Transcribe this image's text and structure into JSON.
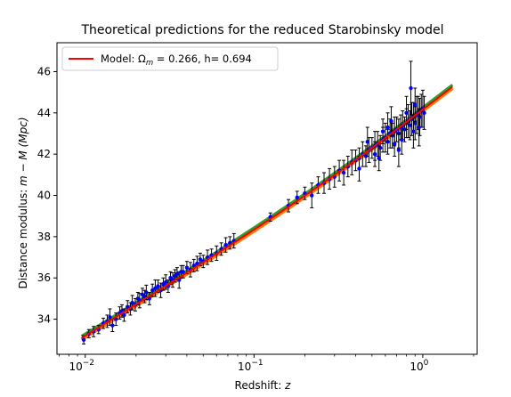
{
  "chart_data": {
    "type": "scatter",
    "title": "Theoretical predictions for the reduced Starobinsky model",
    "xlabel": "Redshift: z",
    "ylabel": "Distance modulus: m − M (Mpc)",
    "xscale": "log",
    "xlim": [
      0.0068,
      2.1
    ],
    "ylim": [
      32.3,
      47.4
    ],
    "x_ticks": [
      {
        "value": 0.01,
        "label": "10",
        "exp": "−2"
      },
      {
        "value": 0.1,
        "label": "10",
        "exp": "−1"
      },
      {
        "value": 1,
        "label": "10",
        "exp": "0"
      }
    ],
    "y_ticks": [
      34,
      36,
      38,
      40,
      42,
      44,
      46
    ],
    "legend": {
      "position": "upper-left",
      "entry": "Model: Ωm = 0.266, h= 0.694",
      "entry_parts": {
        "prefix": "Model: Ω",
        "sub": "m",
        "suffix": " = 0.266, h= 0.694"
      },
      "color": "#ff0000"
    },
    "model": {
      "name": "Model: Ωm = 0.266, h= 0.694",
      "color": "#ff0000",
      "band_colors": [
        "#2ca02c",
        "#ff7f0e"
      ],
      "Omega_m": 0.266,
      "h": 0.694,
      "z_range": [
        0.0095,
        1.5
      ]
    },
    "series": [
      {
        "marker_color": "#0000ff",
        "errorbar_color": "#000000",
        "values": [
          [
            0.0098,
            33.0,
            0.2
          ],
          [
            0.0105,
            33.3,
            0.2
          ],
          [
            0.0112,
            33.4,
            0.25
          ],
          [
            0.012,
            33.5,
            0.2
          ],
          [
            0.0128,
            33.8,
            0.25
          ],
          [
            0.0135,
            33.9,
            0.3
          ],
          [
            0.014,
            34.1,
            0.4
          ],
          [
            0.0145,
            33.7,
            0.3
          ],
          [
            0.0152,
            34.0,
            0.3
          ],
          [
            0.016,
            34.3,
            0.3
          ],
          [
            0.0165,
            34.4,
            0.3
          ],
          [
            0.017,
            34.2,
            0.3
          ],
          [
            0.0178,
            34.6,
            0.3
          ],
          [
            0.0185,
            34.5,
            0.3
          ],
          [
            0.019,
            34.8,
            0.35
          ],
          [
            0.0198,
            34.7,
            0.3
          ],
          [
            0.0205,
            35.0,
            0.3
          ],
          [
            0.021,
            34.9,
            0.35
          ],
          [
            0.0218,
            35.2,
            0.3
          ],
          [
            0.0225,
            35.1,
            0.3
          ],
          [
            0.023,
            35.3,
            0.35
          ],
          [
            0.024,
            35.0,
            0.3
          ],
          [
            0.025,
            35.4,
            0.3
          ],
          [
            0.026,
            35.5,
            0.4
          ],
          [
            0.027,
            35.6,
            0.3
          ],
          [
            0.028,
            35.4,
            0.35
          ],
          [
            0.029,
            35.7,
            0.3
          ],
          [
            0.03,
            35.8,
            0.35
          ],
          [
            0.031,
            35.6,
            0.3
          ],
          [
            0.032,
            36.0,
            0.3
          ],
          [
            0.033,
            35.9,
            0.35
          ],
          [
            0.034,
            36.1,
            0.3
          ],
          [
            0.035,
            36.2,
            0.3
          ],
          [
            0.036,
            35.9,
            0.4
          ],
          [
            0.037,
            36.3,
            0.3
          ],
          [
            0.038,
            36.3,
            0.3
          ],
          [
            0.04,
            36.5,
            0.3
          ],
          [
            0.042,
            36.4,
            0.35
          ],
          [
            0.044,
            36.6,
            0.3
          ],
          [
            0.046,
            36.7,
            0.35
          ],
          [
            0.048,
            36.9,
            0.3
          ],
          [
            0.05,
            36.8,
            0.3
          ],
          [
            0.053,
            37.0,
            0.35
          ],
          [
            0.056,
            37.1,
            0.3
          ],
          [
            0.06,
            37.2,
            0.35
          ],
          [
            0.064,
            37.4,
            0.3
          ],
          [
            0.068,
            37.6,
            0.35
          ],
          [
            0.072,
            37.7,
            0.3
          ],
          [
            0.076,
            37.8,
            0.35
          ],
          [
            0.125,
            38.95,
            0.2
          ],
          [
            0.16,
            39.5,
            0.3
          ],
          [
            0.18,
            39.9,
            0.3
          ],
          [
            0.2,
            40.1,
            0.3
          ],
          [
            0.22,
            40.0,
            0.6
          ],
          [
            0.24,
            40.5,
            0.4
          ],
          [
            0.26,
            40.6,
            0.5
          ],
          [
            0.28,
            40.8,
            0.5
          ],
          [
            0.3,
            40.9,
            0.5
          ],
          [
            0.32,
            41.2,
            0.5
          ],
          [
            0.34,
            41.1,
            0.6
          ],
          [
            0.36,
            41.4,
            0.5
          ],
          [
            0.38,
            41.6,
            0.6
          ],
          [
            0.4,
            41.7,
            0.5
          ],
          [
            0.42,
            41.8,
            0.5
          ],
          [
            0.44,
            42.0,
            0.6
          ],
          [
            0.46,
            41.9,
            0.5
          ],
          [
            0.48,
            42.2,
            0.6
          ],
          [
            0.5,
            42.3,
            0.5
          ],
          [
            0.52,
            42.4,
            0.7
          ],
          [
            0.54,
            42.5,
            0.6
          ],
          [
            0.56,
            42.3,
            0.6
          ],
          [
            0.58,
            42.7,
            0.6
          ],
          [
            0.6,
            42.8,
            0.7
          ],
          [
            0.62,
            42.6,
            0.6
          ],
          [
            0.64,
            43.0,
            0.7
          ],
          [
            0.66,
            42.9,
            0.6
          ],
          [
            0.68,
            43.1,
            0.7
          ],
          [
            0.7,
            43.2,
            0.6
          ],
          [
            0.72,
            43.0,
            0.7
          ],
          [
            0.74,
            43.3,
            0.6
          ],
          [
            0.76,
            43.4,
            0.7
          ],
          [
            0.78,
            43.2,
            0.6
          ],
          [
            0.8,
            43.5,
            0.7
          ],
          [
            0.82,
            43.6,
            0.8
          ],
          [
            0.84,
            43.4,
            0.7
          ],
          [
            0.86,
            43.7,
            0.8
          ],
          [
            0.88,
            43.8,
            0.7
          ],
          [
            0.9,
            43.5,
            0.8
          ],
          [
            0.92,
            43.9,
            0.9
          ],
          [
            0.94,
            44.0,
            0.8
          ],
          [
            0.96,
            43.8,
            0.9
          ],
          [
            0.98,
            44.1,
            0.8
          ],
          [
            1.0,
            44.2,
            0.9
          ],
          [
            1.02,
            44.0,
            0.8
          ],
          [
            0.85,
            45.2,
            1.3
          ],
          [
            0.72,
            42.2,
            0.8
          ],
          [
            0.65,
            43.6,
            0.7
          ],
          [
            0.55,
            41.8,
            0.6
          ],
          [
            0.47,
            42.6,
            0.7
          ],
          [
            0.42,
            41.3,
            0.6
          ],
          [
            0.58,
            43.1,
            0.6
          ],
          [
            0.75,
            42.7,
            0.7
          ],
          [
            0.9,
            44.4,
            0.8
          ],
          [
            0.95,
            43.3,
            0.9
          ],
          [
            0.68,
            42.5,
            0.6
          ],
          [
            0.62,
            43.3,
            0.7
          ],
          [
            0.52,
            42.0,
            0.6
          ],
          [
            0.8,
            44.0,
            0.8
          ],
          [
            0.88,
            43.1,
            0.8
          ]
        ]
      }
    ]
  }
}
